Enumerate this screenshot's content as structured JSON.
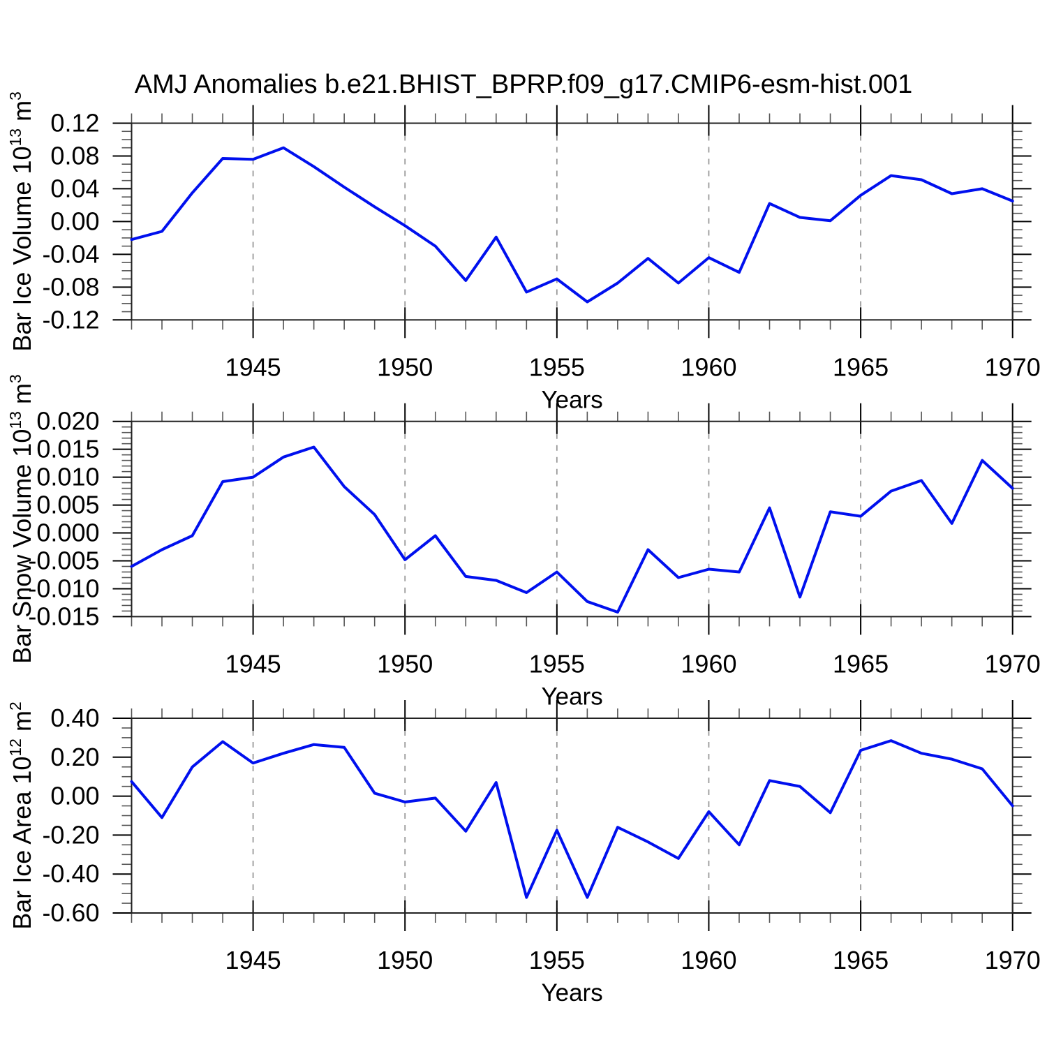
{
  "title": "AMJ Anomalies b.e21.BHIST_BPRP.f09_g17.CMIP6-esm-hist.001",
  "line_color": "#0010ee",
  "grid_color": "#999999",
  "axis_color": "#222222",
  "minor_tick_color": "#555555",
  "major_tick_color": "#000000",
  "chart_data": [
    {
      "type": "line",
      "name": "bar-ice-volume",
      "ylabel_parts": {
        "prefix": "Bar Ice Volume 10",
        "sup1": "13",
        "mid": " m",
        "sup2": "3"
      },
      "xlabel": "Years",
      "x": [
        1941,
        1942,
        1943,
        1944,
        1945,
        1946,
        1947,
        1948,
        1949,
        1950,
        1951,
        1952,
        1953,
        1954,
        1955,
        1956,
        1957,
        1958,
        1959,
        1960,
        1961,
        1962,
        1963,
        1964,
        1965,
        1966,
        1967,
        1968,
        1969,
        1970
      ],
      "values": [
        -0.022,
        -0.012,
        0.035,
        0.077,
        0.076,
        0.09,
        0.067,
        0.042,
        0.018,
        -0.005,
        -0.03,
        -0.072,
        -0.019,
        -0.086,
        -0.07,
        -0.098,
        -0.075,
        -0.045,
        -0.075,
        -0.044,
        -0.062,
        0.022,
        0.005,
        0.001,
        0.032,
        0.056,
        0.051,
        0.034,
        0.04,
        0.025
      ],
      "xlim": [
        1941,
        1970
      ],
      "ylim": [
        -0.12,
        0.12
      ],
      "yticks": [
        0.12,
        0.08,
        0.04,
        0.0,
        -0.04,
        -0.08,
        -0.12
      ],
      "ytick_labels": [
        "0.12",
        "0.08",
        "0.04",
        "0.00",
        "-0.04",
        "-0.08",
        "-0.12"
      ],
      "ytick_minor_step": 0.01,
      "xticks": [
        1945,
        1950,
        1955,
        1960,
        1965,
        1970
      ],
      "xtick_labels": [
        "1945",
        "1950",
        "1955",
        "1960",
        "1965",
        "1970"
      ],
      "xtick_minor_step": 1,
      "grid_x": [
        1945,
        1950,
        1955,
        1960,
        1965
      ],
      "grid_on": true,
      "legend": "none"
    },
    {
      "type": "line",
      "name": "bar-snow-volume",
      "ylabel_parts": {
        "prefix": "Bar Snow Volume 10",
        "sup1": "13",
        "mid": " m",
        "sup2": "3"
      },
      "xlabel": "Years",
      "x": [
        1941,
        1942,
        1943,
        1944,
        1945,
        1946,
        1947,
        1948,
        1949,
        1950,
        1951,
        1952,
        1953,
        1954,
        1955,
        1956,
        1957,
        1958,
        1959,
        1960,
        1961,
        1962,
        1963,
        1964,
        1965,
        1966,
        1967,
        1968,
        1969,
        1970
      ],
      "values": [
        -0.006,
        -0.003,
        -0.0005,
        0.0092,
        0.01,
        0.0136,
        0.0154,
        0.0083,
        0.0033,
        -0.0048,
        -0.0005,
        -0.0078,
        -0.0085,
        -0.0107,
        -0.007,
        -0.0123,
        -0.0142,
        -0.003,
        -0.008,
        -0.0065,
        -0.007,
        0.0045,
        -0.0115,
        0.0038,
        0.003,
        0.0075,
        0.0094,
        0.0017,
        0.013,
        0.008
      ],
      "xlim": [
        1941,
        1970
      ],
      "ylim": [
        -0.015,
        0.02
      ],
      "yticks": [
        0.02,
        0.015,
        0.01,
        0.005,
        0.0,
        -0.005,
        -0.01,
        -0.015
      ],
      "ytick_labels": [
        "0.020",
        "0.015",
        "0.010",
        "0.005",
        "0.000",
        "-0.005",
        "-0.010",
        "-0.015"
      ],
      "ytick_minor_step": 0.001,
      "xticks": [
        1945,
        1950,
        1955,
        1960,
        1965,
        1970
      ],
      "xtick_labels": [
        "1945",
        "1950",
        "1955",
        "1960",
        "1965",
        "1970"
      ],
      "xtick_minor_step": 1,
      "grid_x": [
        1945,
        1950,
        1955,
        1960,
        1965
      ],
      "grid_on": true,
      "legend": "none"
    },
    {
      "type": "line",
      "name": "bar-ice-area",
      "ylabel_parts": {
        "prefix": "Bar Ice Area 10",
        "sup1": "12",
        "mid": " m",
        "sup2": "2"
      },
      "xlabel": "Years",
      "x": [
        1941,
        1942,
        1943,
        1944,
        1945,
        1946,
        1947,
        1948,
        1949,
        1950,
        1951,
        1952,
        1953,
        1954,
        1955,
        1956,
        1957,
        1958,
        1959,
        1960,
        1961,
        1962,
        1963,
        1964,
        1965,
        1966,
        1967,
        1968,
        1969,
        1970
      ],
      "values": [
        0.075,
        -0.11,
        0.15,
        0.28,
        0.17,
        0.22,
        0.265,
        0.25,
        0.015,
        -0.03,
        -0.01,
        -0.18,
        0.07,
        -0.52,
        -0.175,
        -0.52,
        -0.16,
        -0.235,
        -0.32,
        -0.08,
        -0.25,
        0.08,
        0.05,
        -0.085,
        0.235,
        0.285,
        0.22,
        0.19,
        0.14,
        -0.05
      ],
      "xlim": [
        1941,
        1970
      ],
      "ylim": [
        -0.6,
        0.4
      ],
      "yticks": [
        0.4,
        0.2,
        0.0,
        -0.2,
        -0.4,
        -0.6
      ],
      "ytick_labels": [
        "0.40",
        "0.20",
        "0.00",
        "-0.20",
        "-0.40",
        "-0.60"
      ],
      "ytick_minor_step": 0.05,
      "xticks": [
        1945,
        1950,
        1955,
        1960,
        1965,
        1970
      ],
      "xtick_labels": [
        "1945",
        "1950",
        "1955",
        "1960",
        "1965",
        "1970"
      ],
      "xtick_minor_step": 1,
      "grid_x": [
        1945,
        1950,
        1955,
        1960,
        1965
      ],
      "grid_on": true,
      "legend": "none"
    }
  ]
}
